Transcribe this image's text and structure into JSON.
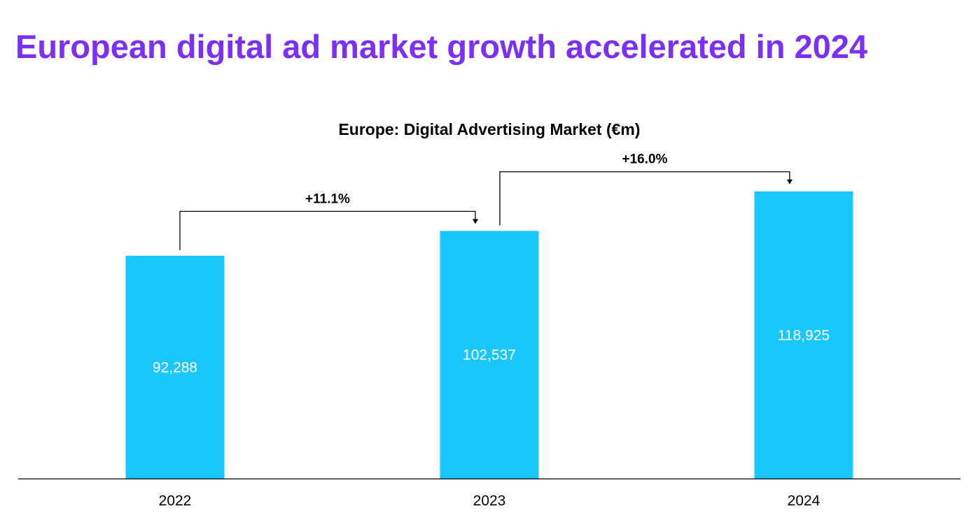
{
  "headline": "European digital ad market growth accelerated in 2024",
  "colors": {
    "headline": "#7b2ff7",
    "bar": "#1ac7fc",
    "bar_label": "#ffffff",
    "text": "#000000"
  },
  "chart_data": {
    "type": "bar",
    "title": "Europe: Digital Advertising Market (€m)",
    "xlabel": "",
    "ylabel": "",
    "categories": [
      "2022",
      "2023",
      "2024"
    ],
    "values": [
      92288,
      102537,
      118925
    ],
    "value_labels": [
      "92,288",
      "102,537",
      "118,925"
    ],
    "ylim": [
      0,
      120000
    ],
    "grid": false,
    "legend": "none",
    "annotations": [
      {
        "from": "2022",
        "to": "2023",
        "text": "+11.1%"
      },
      {
        "from": "2023",
        "to": "2024",
        "text": "+16.0%"
      }
    ]
  }
}
